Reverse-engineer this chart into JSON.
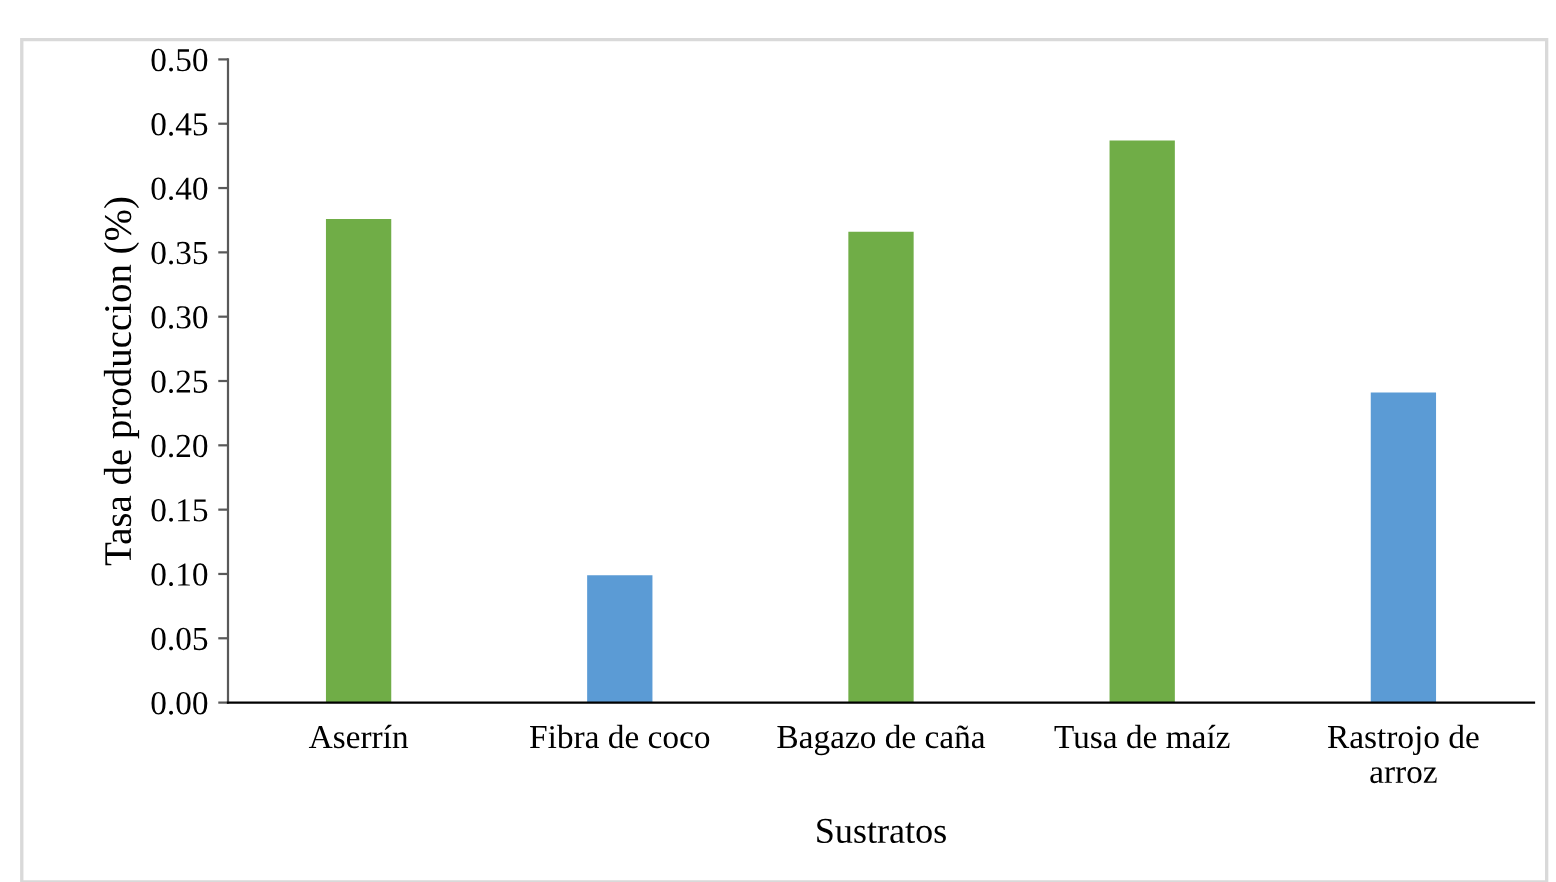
{
  "chart_data": {
    "type": "bar",
    "xlabel": "Sustratos",
    "ylabel": "Tasa de produccion (%)",
    "categories": [
      "Aserrín",
      "Fibra de coco",
      "Bagazo de caña",
      "Tusa de maíz",
      "Rastrojo de\narroz"
    ],
    "values": [
      0.376,
      0.099,
      0.366,
      0.437,
      0.241
    ],
    "colors": [
      "#70ad47",
      "#5b9bd5",
      "#70ad47",
      "#70ad47",
      "#5b9bd5"
    ],
    "ylim": [
      0,
      0.5
    ],
    "yticks": [
      {
        "value": 0,
        "label": "0.00"
      },
      {
        "value": 0.05,
        "label": "0.05"
      },
      {
        "value": 0.1,
        "label": "0.10"
      },
      {
        "value": 0.15,
        "label": "0.15"
      },
      {
        "value": 0.2,
        "label": "0.20"
      },
      {
        "value": 0.25,
        "label": "0.25"
      },
      {
        "value": 0.3,
        "label": "0.30"
      },
      {
        "value": 0.35,
        "label": "0.35"
      },
      {
        "value": 0.4,
        "label": "0.40"
      },
      {
        "value": 0.45,
        "label": "0.45"
      },
      {
        "value": 0.5,
        "label": "0.50"
      }
    ],
    "grid": false,
    "legend": false
  }
}
